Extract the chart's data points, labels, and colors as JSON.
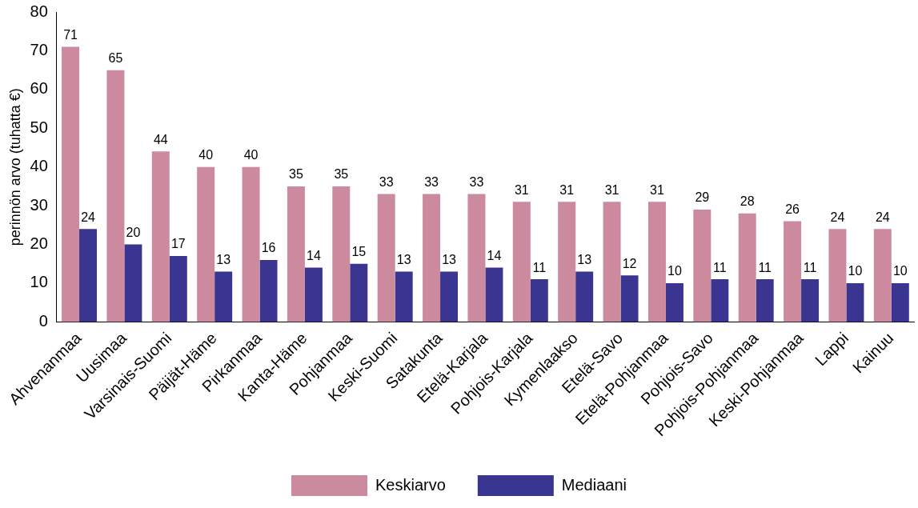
{
  "chart_data": {
    "type": "bar",
    "ylabel": "perinnön arvo (tuhatta €)",
    "categories": [
      "Ahvenanmaa",
      "Uusimaa",
      "Varsinais-Suomi",
      "Päijät-Häme",
      "Pirkanmaa",
      "Kanta-Häme",
      "Pohjanmaa",
      "Keski-Suomi",
      "Satakunta",
      "Etelä-Karjala",
      "Pohjois-Karjala",
      "Kymenlaakso",
      "Etelä-Savo",
      "Etelä-Pohjanmaa",
      "Pohjois-Savo",
      "Pohjois-Pohjanmaa",
      "Keski-Pohjanmaa",
      "Lappi",
      "Kainuu"
    ],
    "series": [
      {
        "name": "Keskiarvo",
        "color": "#cc8a9e",
        "values": [
          71,
          65,
          44,
          40,
          40,
          35,
          35,
          33,
          33,
          33,
          31,
          31,
          31,
          31,
          29,
          28,
          26,
          24,
          24
        ]
      },
      {
        "name": "Mediaani",
        "color": "#3a3591",
        "values": [
          24,
          20,
          17,
          13,
          16,
          14,
          15,
          13,
          13,
          14,
          11,
          13,
          12,
          10,
          11,
          11,
          11,
          10,
          10
        ]
      }
    ],
    "ylim": [
      0,
      80
    ],
    "yticks": [
      0,
      10,
      20,
      30,
      40,
      50,
      60,
      70,
      80
    ],
    "grid": false,
    "legend": "bottom",
    "data_labels": true
  }
}
